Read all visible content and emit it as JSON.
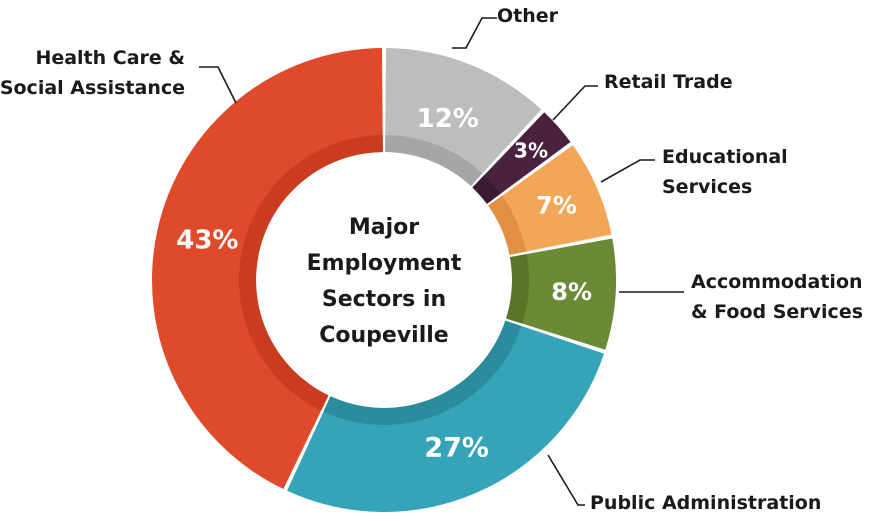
{
  "chart_data": {
    "type": "pie",
    "variant": "donut",
    "title": "Major Employment Sectors in Coupeville",
    "title_lines": [
      "Major",
      "Employment",
      "Sectors in",
      "Coupeville"
    ],
    "unit": "%",
    "categories": [
      "Other",
      "Retail Trade",
      "Educational Services",
      "Accommodation & Food Services",
      "Public Administration",
      "Health Care & Social Assistance"
    ],
    "values": [
      12,
      3,
      7,
      8,
      27,
      43
    ],
    "value_labels": [
      "12%",
      "3%",
      "7%",
      "8%",
      "27%",
      "43%"
    ],
    "label_lines": [
      [
        "Other"
      ],
      [
        "Retail Trade"
      ],
      [
        "Educational",
        "Services"
      ],
      [
        "Accommodation",
        "& Food Services"
      ],
      [
        "Public Administration"
      ],
      [
        "Health Care &",
        "Social Assistance"
      ]
    ],
    "colors": [
      "#bcbdbf",
      "#4a2240",
      "#f4a657",
      "#6a8a35",
      "#35a4b8",
      "#df4a2a"
    ],
    "shade_colors": [
      "#a5a6a8",
      "#3a1a32",
      "#e08f44",
      "#587528",
      "#2b8c9e",
      "#c93c20"
    ],
    "start_angle_deg": 0,
    "direction": "clockwise",
    "legend": "callouts"
  }
}
